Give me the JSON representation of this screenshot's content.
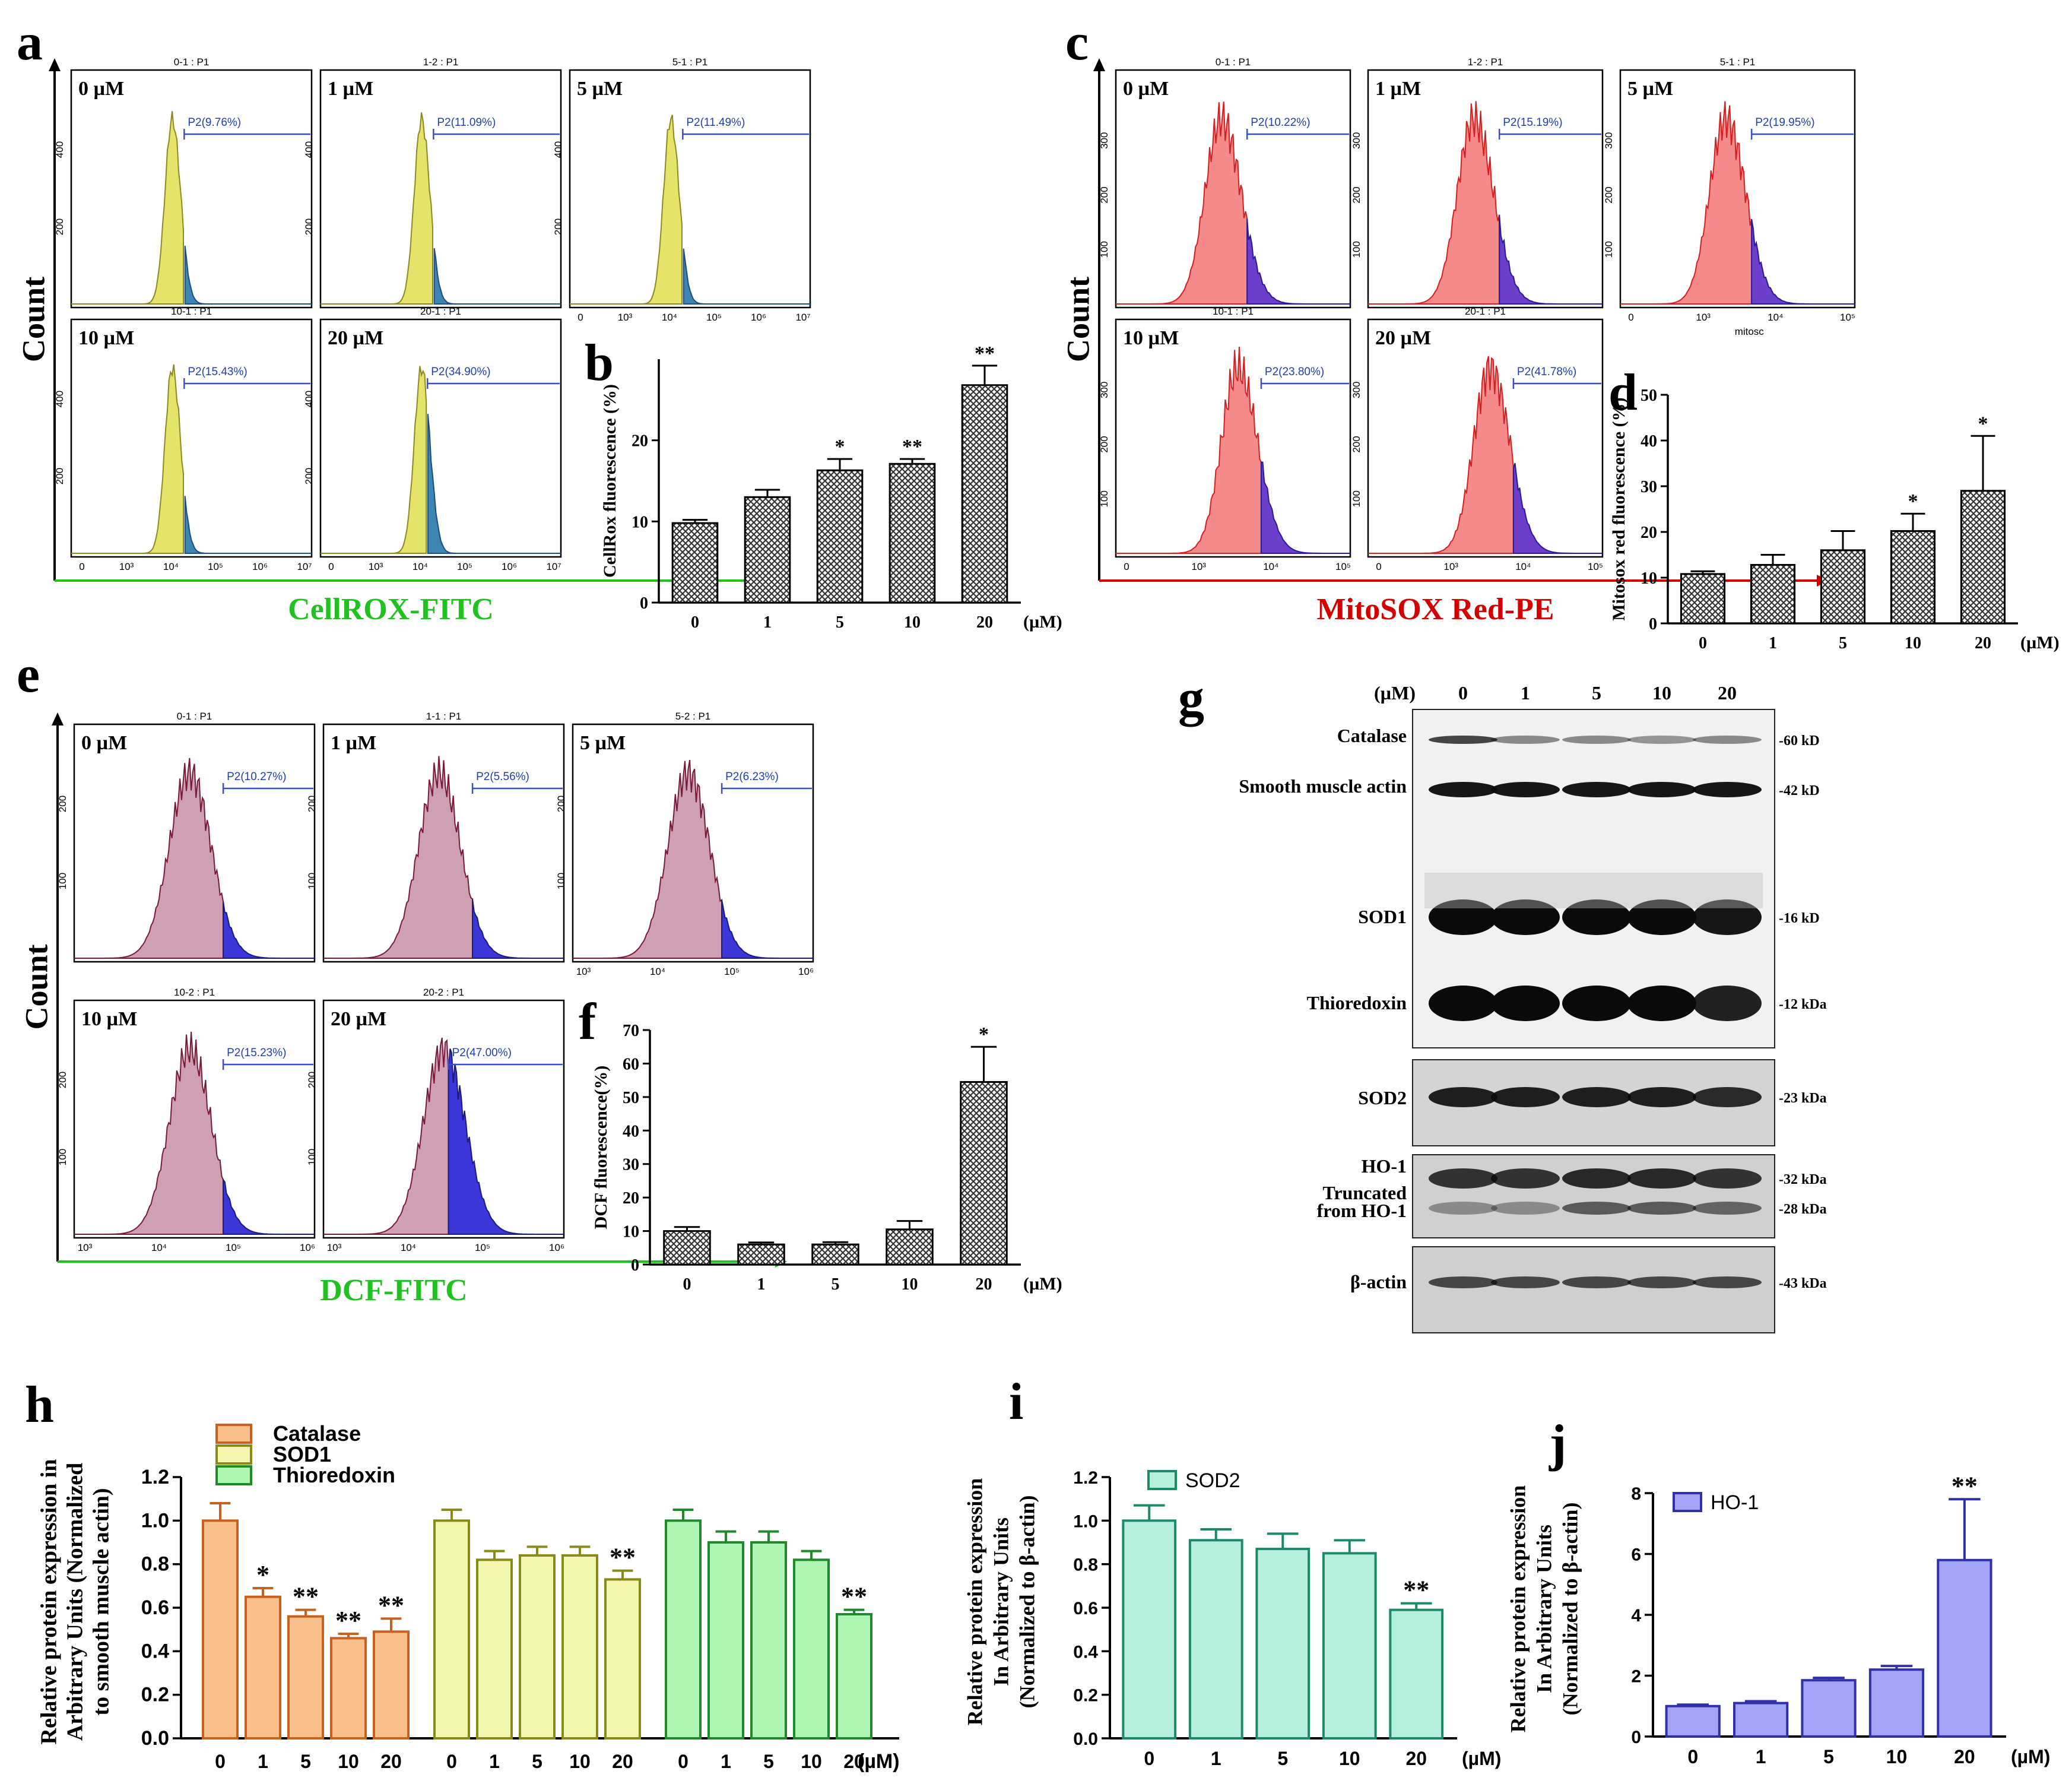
{
  "panel_letters": [
    "a",
    "b",
    "c",
    "d",
    "e",
    "f",
    "g",
    "h",
    "i",
    "j"
  ],
  "flow": [
    {
      "id": "a",
      "axis_y": "Count",
      "axis_x": "CellROX-FITC",
      "axis_x_color": "#1fc21f",
      "fill": "#e6e36a",
      "stroke": "#8a8a20",
      "gate_fill": "#3d86b3",
      "gate_stroke": "#1c4e80",
      "y_ticks": [
        "200",
        "400"
      ],
      "x_ticks": [
        "0",
        "10³",
        "10⁴",
        "10⁵",
        "10⁶",
        "10⁷"
      ],
      "panels": [
        {
          "title": "0-1 : P1",
          "label": "0 µM",
          "gate": "P2(9.76%)"
        },
        {
          "title": "1-2 : P1",
          "label": "1 µM",
          "gate": "P2(11.09%)"
        },
        {
          "title": "5-1 : P1",
          "label": "5 µM",
          "gate": "P2(11.49%)"
        },
        {
          "title": "10-1 : P1",
          "label": "10 µM",
          "gate": "P2(15.43%)"
        },
        {
          "title": "20-1 : P1",
          "label": "20 µM",
          "gate": "P2(34.90%)"
        }
      ]
    },
    {
      "id": "c",
      "axis_y": "Count",
      "axis_x": "MitoSOX Red-PE",
      "axis_x_color": "#d40000",
      "fill": "#f58a8a",
      "stroke": "#d42020",
      "gate_fill": "#6b3fc9",
      "gate_stroke": "#2a1a9a",
      "y_ticks": [
        "100",
        "200",
        "300"
      ],
      "x_ticks": [
        "0",
        "10³",
        "10⁴",
        "10⁵"
      ],
      "xlabel_small": "mitosc",
      "panels": [
        {
          "title": "0-1 : P1",
          "label": "0 µM",
          "gate": "P2(10.22%)"
        },
        {
          "title": "1-2 : P1",
          "label": "1 µM",
          "gate": "P2(15.19%)"
        },
        {
          "title": "5-1 : P1",
          "label": "5 µM",
          "gate": "P2(19.95%)"
        },
        {
          "title": "10-1 : P1",
          "label": "10 µM",
          "gate": "P2(23.80%)"
        },
        {
          "title": "20-1 : P1",
          "label": "20 µM",
          "gate": "P2(41.78%)"
        }
      ]
    },
    {
      "id": "e",
      "axis_y": "Count",
      "axis_x": "DCF-FITC",
      "axis_x_color": "#1fc21f",
      "fill": "#cf9fb4",
      "stroke": "#7a1a3a",
      "gate_fill": "#3a36d8",
      "gate_stroke": "#1a1a80",
      "y_ticks": [
        "100",
        "200"
      ],
      "x_ticks": [
        "10³",
        "10⁴",
        "10⁵",
        "10⁶"
      ],
      "panels": [
        {
          "title": "0-1 : P1",
          "label": "0 µM",
          "gate": "P2(10.27%)"
        },
        {
          "title": "1-1 : P1",
          "label": "1 µM",
          "gate": "P2(5.56%)"
        },
        {
          "title": "5-2 : P1",
          "label": "5 µM",
          "gate": "P2(6.23%)"
        },
        {
          "title": "10-2 : P1",
          "label": "10 µM",
          "gate": "P2(15.23%)"
        },
        {
          "title": "20-2 : P1",
          "label": "20 µM",
          "gate": "P2(47.00%)"
        }
      ]
    }
  ],
  "blot": {
    "header_unit": "(µM)",
    "lanes": [
      "0",
      "1",
      "5",
      "10",
      "20"
    ],
    "rows": [
      {
        "label": "Catalase",
        "size": "-60 kD"
      },
      {
        "label": "Smooth muscle actin",
        "size": "-42 kD"
      },
      {
        "label": "SOD1",
        "size": "-16 kD"
      },
      {
        "label": "Thioredoxin",
        "size": "-12 kDa"
      },
      {
        "label": "SOD2",
        "size": "-23 kDa"
      },
      {
        "label": "HO-1",
        "size": "-32 kDa"
      },
      {
        "label": "Truncated\nfrom HO-1",
        "size": "-28 kDa"
      },
      {
        "label": "β-actin",
        "size": "-43 kDa"
      }
    ]
  },
  "chart_data": [
    {
      "panel": "b",
      "type": "bar",
      "categories": [
        "0",
        "1",
        "5",
        "10",
        "20"
      ],
      "values": [
        9.8,
        13.0,
        16.3,
        17.1,
        26.8
      ],
      "errors": [
        0.4,
        0.9,
        1.4,
        0.6,
        2.4
      ],
      "sig": [
        "",
        "",
        "*",
        "**",
        "**"
      ],
      "ylabel": "CellRox fluorescence (%)",
      "xunit": "(µM)",
      "ylim": [
        0,
        30
      ],
      "yticks": [
        "0",
        "10",
        "20"
      ]
    },
    {
      "panel": "d",
      "type": "bar",
      "categories": [
        "0",
        "1",
        "5",
        "10",
        "20"
      ],
      "values": [
        10.8,
        12.8,
        16.0,
        20.2,
        29.0
      ],
      "errors": [
        0.6,
        2.2,
        4.2,
        3.8,
        12.0
      ],
      "sig": [
        "",
        "",
        "",
        "*",
        "*"
      ],
      "ylabel": "Mitosox red fluorescence (%)",
      "xunit": "(µM)",
      "ylim": [
        0,
        50
      ],
      "yticks": [
        "0",
        "10",
        "20",
        "30",
        "40",
        "50"
      ]
    },
    {
      "panel": "f",
      "type": "bar",
      "categories": [
        "0",
        "1",
        "5",
        "10",
        "20"
      ],
      "values": [
        10.0,
        6.0,
        6.0,
        10.5,
        54.5
      ],
      "errors": [
        1.2,
        0.6,
        0.7,
        2.5,
        10.5
      ],
      "sig": [
        "",
        "",
        "",
        "",
        "*"
      ],
      "ylabel": "DCF fluorescence(%)",
      "xunit": "(µM)",
      "ylim": [
        0,
        70
      ],
      "yticks": [
        "0",
        "10",
        "20",
        "30",
        "40",
        "50",
        "60",
        "70"
      ]
    },
    {
      "panel": "h",
      "type": "bar",
      "ylabel": [
        "Relative protein expression in",
        "Arbitrary Units (Normalized",
        "to smooth muscle actin)"
      ],
      "xunit": "(µM)",
      "ylim": [
        0,
        1.2
      ],
      "yticks": [
        "0.0",
        "0.2",
        "0.4",
        "0.6",
        "0.8",
        "1.0",
        "1.2"
      ],
      "series": [
        {
          "name": "Catalase",
          "color": "#f9c08c",
          "edge": "#c8601e",
          "categories": [
            "0",
            "1",
            "5",
            "10",
            "20"
          ],
          "values": [
            1.0,
            0.65,
            0.56,
            0.46,
            0.49
          ],
          "errors": [
            0.08,
            0.04,
            0.03,
            0.02,
            0.06
          ],
          "sig": [
            "",
            "*",
            "**",
            "**",
            "**"
          ]
        },
        {
          "name": "SOD1",
          "color": "#f2f7b0",
          "edge": "#8a8a18",
          "categories": [
            "0",
            "1",
            "5",
            "10",
            "20"
          ],
          "values": [
            1.0,
            0.82,
            0.84,
            0.84,
            0.73
          ],
          "errors": [
            0.05,
            0.04,
            0.04,
            0.04,
            0.04
          ],
          "sig": [
            "",
            "",
            "",
            "",
            "**"
          ]
        },
        {
          "name": "Thioredoxin",
          "color": "#aef5b4",
          "edge": "#1f8a2a",
          "categories": [
            "0",
            "1",
            "5",
            "10",
            "20"
          ],
          "values": [
            1.0,
            0.9,
            0.9,
            0.82,
            0.57
          ],
          "errors": [
            0.05,
            0.05,
            0.05,
            0.04,
            0.02
          ],
          "sig": [
            "",
            "",
            "",
            "",
            "**"
          ]
        }
      ]
    },
    {
      "panel": "i",
      "type": "bar",
      "series_name": "SOD2",
      "color": "#b6f0dc",
      "edge": "#1a8a6a",
      "categories": [
        "0",
        "1",
        "5",
        "10",
        "20"
      ],
      "values": [
        1.0,
        0.91,
        0.87,
        0.85,
        0.59
      ],
      "errors": [
        0.07,
        0.05,
        0.07,
        0.06,
        0.03
      ],
      "sig": [
        "",
        "",
        "",
        "",
        "**"
      ],
      "ylabel": [
        "Relative protein expression",
        "In Arbitrary Units",
        "(Normalized to β-actin)"
      ],
      "xunit": "(µM)",
      "ylim": [
        0,
        1.2
      ],
      "yticks": [
        "0.0",
        "0.2",
        "0.4",
        "0.6",
        "0.8",
        "1.0",
        "1.2"
      ]
    },
    {
      "panel": "j",
      "type": "bar",
      "series_name": "HO-1",
      "color": "#a4a4f6",
      "edge": "#3030a8",
      "categories": [
        "0",
        "1",
        "5",
        "10",
        "20"
      ],
      "values": [
        1.0,
        1.1,
        1.85,
        2.2,
        5.8
      ],
      "errors": [
        0.05,
        0.06,
        0.08,
        0.12,
        2.0
      ],
      "sig": [
        "",
        "",
        "",
        "",
        "**"
      ],
      "ylabel": [
        "Relative protein expression",
        "In Arbitrary Units",
        "(Normalized to β-actin)"
      ],
      "xunit": "(µM)",
      "ylim": [
        0,
        8
      ],
      "yticks": [
        "0",
        "2",
        "4",
        "6",
        "8"
      ]
    }
  ]
}
